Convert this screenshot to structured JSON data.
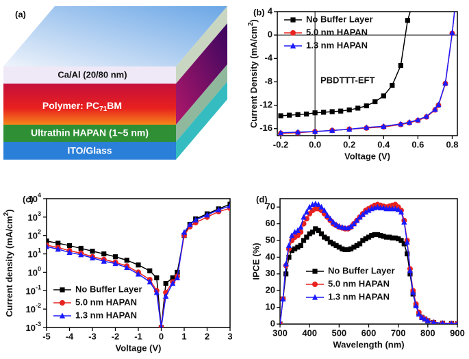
{
  "diagram": {
    "label": "(a)",
    "layers": [
      {
        "text": "Ca/Al (20/80 nm)"
      },
      {
        "text": "Polymer: PC",
        "sub": "71",
        "after": "BM"
      },
      {
        "text": "Ultrathin HAPAN (1~5 nm)"
      },
      {
        "text": "ITO/Glass"
      }
    ]
  },
  "chart_data": [
    {
      "type": "line",
      "panel_label": "(b)",
      "xlabel": "Voltage (V)",
      "ylabel": {
        "main": "Current Density (mA/cm",
        "sup": "2",
        "end": ")"
      },
      "xlim": [
        -0.22,
        0.83
      ],
      "ylim": [
        -17.2,
        4
      ],
      "xticks": [
        -0.2,
        {
          "value": 0,
          "label": "0.0"
        },
        0.2,
        0.4,
        0.6,
        0.8
      ],
      "yticks": [
        -16,
        -12,
        -8,
        -4,
        0,
        4
      ],
      "zero_lines": true,
      "legend": "upper left",
      "annotation": "PBDTTT-EFT",
      "series": [
        {
          "name": "No Buffer Layer",
          "color": "#000000",
          "marker": "square",
          "x": [
            -0.2,
            -0.15,
            -0.1,
            -0.05,
            0,
            0.05,
            0.1,
            0.15,
            0.2,
            0.25,
            0.3,
            0.35,
            0.4,
            0.45,
            0.5,
            0.54,
            0.56
          ],
          "values": [
            -13.8,
            -13.7,
            -13.6,
            -13.5,
            -13.3,
            -13.2,
            -13.1,
            -13.0,
            -12.8,
            -12.5,
            -12.1,
            -11.4,
            -10.4,
            -8.6,
            -5.2,
            2.5,
            4.5
          ]
        },
        {
          "name": "5.0 nm HAPAN",
          "color": "#e8231f",
          "marker": "circle",
          "x": [
            -0.2,
            -0.1,
            0,
            0.1,
            0.2,
            0.3,
            0.4,
            0.5,
            0.55,
            0.6,
            0.65,
            0.7,
            0.72,
            0.76,
            0.8,
            0.815
          ],
          "values": [
            -16.8,
            -16.7,
            -16.5,
            -16.3,
            -16.1,
            -15.9,
            -15.7,
            -15.3,
            -15.0,
            -14.6,
            -14.0,
            -12.8,
            -12.0,
            -8.3,
            0.3,
            4.5
          ]
        },
        {
          "name": "1.3 nm HAPAN",
          "color": "#1a1aff",
          "marker": "triangle",
          "x": [
            -0.2,
            -0.1,
            0,
            0.1,
            0.2,
            0.3,
            0.4,
            0.5,
            0.55,
            0.6,
            0.65,
            0.7,
            0.72,
            0.76,
            0.8,
            0.815
          ],
          "values": [
            -16.7,
            -16.6,
            -16.5,
            -16.3,
            -16.1,
            -15.8,
            -15.6,
            -15.2,
            -14.9,
            -14.5,
            -13.9,
            -12.7,
            -11.9,
            -8.2,
            0.4,
            4.5
          ]
        }
      ]
    },
    {
      "type": "line",
      "panel_label": "(c)",
      "xlabel": "Voltage (V)",
      "ylabel": {
        "main": "Current density (mA/cm",
        "sup": "2",
        "end": ")"
      },
      "yscale": "log",
      "xlim": [
        -5,
        3
      ],
      "ylim": [
        0.001,
        10000
      ],
      "xticks": [
        -5,
        -4,
        -3,
        -2,
        -1,
        0,
        1,
        2,
        3
      ],
      "yticks": [
        {
          "value": 0.001,
          "base": "10",
          "exp": "-3"
        },
        {
          "value": 0.01,
          "base": "10",
          "exp": "-2"
        },
        {
          "value": 0.1,
          "base": "10",
          "exp": "-1"
        },
        {
          "value": 1,
          "base": "10",
          "exp": "0"
        },
        {
          "value": 10,
          "base": "10",
          "exp": "1"
        },
        {
          "value": 100,
          "base": "10",
          "exp": "2"
        },
        {
          "value": 1000,
          "base": "10",
          "exp": "3"
        },
        {
          "value": 10000,
          "base": "10",
          "exp": "4"
        }
      ],
      "legend": "lower left",
      "series": [
        {
          "name": "No Buffer Layer",
          "color": "#000000",
          "marker": "square",
          "x": [
            -5,
            -4.5,
            -4,
            -3.5,
            -3,
            -2.5,
            -2,
            -1.5,
            -1,
            -0.5,
            -0.2,
            0,
            0.2,
            0.5,
            0.7,
            1,
            1.25,
            1.5,
            2,
            2.5,
            3
          ],
          "values": [
            50,
            38,
            28,
            20,
            14,
            10,
            7,
            4.5,
            2.5,
            1.2,
            0.5,
            0.001,
            0.25,
            0.5,
            1,
            100,
            400,
            800,
            1500,
            2800,
            5000
          ]
        },
        {
          "name": "5.0 nm HAPAN",
          "color": "#e8231f",
          "marker": "circle",
          "x": [
            -5,
            -4.5,
            -4,
            -3.5,
            -3,
            -2.5,
            -2,
            -1.5,
            -1,
            -0.5,
            -0.2,
            0,
            0.2,
            0.5,
            0.7,
            1,
            1.25,
            1.5,
            2,
            2.5,
            3
          ],
          "values": [
            30,
            22,
            15,
            11,
            7,
            5,
            3.5,
            2.2,
            1,
            0.4,
            0.1,
            0.001,
            0.08,
            0.3,
            0.6,
            100,
            300,
            500,
            1000,
            2000,
            3000
          ]
        },
        {
          "name": "1.3 nm HAPAN",
          "color": "#1a1aff",
          "marker": "triangle",
          "x": [
            -5,
            -4.5,
            -4,
            -3.5,
            -3,
            -2.5,
            -2,
            -1.5,
            -1,
            -0.5,
            -0.2,
            0,
            0.2,
            0.5,
            0.7,
            1,
            1.25,
            1.5,
            2,
            2.5,
            3
          ],
          "values": [
            25,
            18,
            12,
            9,
            6,
            4,
            3,
            1.8,
            0.8,
            0.3,
            0.08,
            0.001,
            0.05,
            0.25,
            0.5,
            150,
            400,
            700,
            1300,
            2500,
            4000
          ]
        }
      ]
    },
    {
      "type": "line",
      "panel_label": "(d)",
      "xlabel": "Wavelength (nm)",
      "ylabel": "IPCE (%)",
      "xlim": [
        300,
        900
      ],
      "ylim": [
        0,
        75
      ],
      "xticks": [
        300,
        400,
        500,
        600,
        700,
        800,
        900
      ],
      "yticks": [
        0,
        10,
        20,
        30,
        40,
        50,
        60,
        70
      ],
      "legend": "lower left",
      "series": [
        {
          "name": "No Buffer Layer",
          "color": "#000000",
          "marker": "square",
          "x": [
            300,
            310,
            320,
            330,
            340,
            350,
            360,
            370,
            380,
            390,
            400,
            410,
            420,
            430,
            440,
            450,
            460,
            470,
            480,
            490,
            500,
            510,
            520,
            530,
            540,
            550,
            560,
            570,
            580,
            590,
            600,
            610,
            620,
            630,
            640,
            650,
            660,
            670,
            680,
            690,
            700,
            710,
            720,
            730,
            740,
            750,
            760,
            770,
            780,
            790,
            800,
            820,
            850,
            880,
            900
          ],
          "values": [
            0,
            15,
            30,
            40,
            44,
            45,
            46,
            47,
            50,
            52,
            54,
            55,
            57,
            56,
            54,
            52,
            51,
            49,
            48,
            47,
            46,
            45,
            44.5,
            44.5,
            45,
            46,
            47,
            48,
            50,
            51,
            52,
            53,
            53.5,
            53.5,
            53,
            52.5,
            52,
            52,
            51.5,
            51.5,
            51,
            50,
            48,
            42,
            30,
            18,
            11,
            6,
            4,
            3,
            2,
            1,
            0.5,
            0.3,
            0.2
          ]
        },
        {
          "name": "5.0 nm HAPAN",
          "color": "#e8231f",
          "marker": "circle",
          "x": [
            300,
            310,
            320,
            330,
            340,
            350,
            360,
            370,
            380,
            390,
            400,
            410,
            420,
            430,
            440,
            450,
            460,
            470,
            480,
            490,
            500,
            510,
            520,
            530,
            540,
            550,
            560,
            570,
            580,
            590,
            600,
            610,
            620,
            630,
            640,
            650,
            660,
            670,
            680,
            690,
            700,
            710,
            720,
            730,
            740,
            750,
            760,
            770,
            780,
            790,
            800,
            820,
            850,
            880,
            900
          ],
          "values": [
            0,
            15,
            35,
            45,
            50,
            52,
            53,
            55,
            60,
            63,
            66,
            68,
            69,
            69,
            68,
            66,
            64,
            62,
            60,
            59,
            58,
            57.5,
            57,
            57,
            58,
            60,
            62,
            64,
            66,
            68,
            69,
            70,
            71,
            71.5,
            71,
            70.5,
            70,
            70.5,
            71,
            71.5,
            70,
            68,
            62,
            50,
            33,
            20,
            12,
            7,
            4,
            3,
            2,
            1,
            0.5,
            0.3,
            0.2
          ]
        },
        {
          "name": "1.3 nm HAPAN",
          "color": "#1a1aff",
          "marker": "triangle",
          "x": [
            300,
            310,
            320,
            330,
            340,
            350,
            360,
            370,
            380,
            390,
            400,
            410,
            420,
            430,
            440,
            450,
            460,
            470,
            480,
            490,
            500,
            510,
            520,
            530,
            540,
            550,
            560,
            570,
            580,
            590,
            600,
            610,
            620,
            630,
            640,
            650,
            660,
            670,
            680,
            690,
            700,
            710,
            720,
            730,
            740,
            750,
            760,
            770,
            780,
            790,
            800,
            820,
            850,
            880,
            900
          ],
          "values": [
            0,
            15,
            36,
            47,
            53,
            55,
            56,
            58,
            64,
            67,
            70,
            71.5,
            72,
            71.5,
            70,
            68,
            65,
            63,
            61,
            59.5,
            58.5,
            58,
            57.5,
            57.5,
            58.5,
            60,
            62,
            64,
            65.5,
            67,
            68,
            69,
            69.5,
            70,
            69.5,
            69.5,
            69,
            69,
            69,
            69,
            68.5,
            67,
            61,
            49,
            32,
            19,
            11,
            6,
            4,
            3,
            2,
            1,
            0.5,
            0.3,
            0.2
          ]
        }
      ]
    }
  ]
}
